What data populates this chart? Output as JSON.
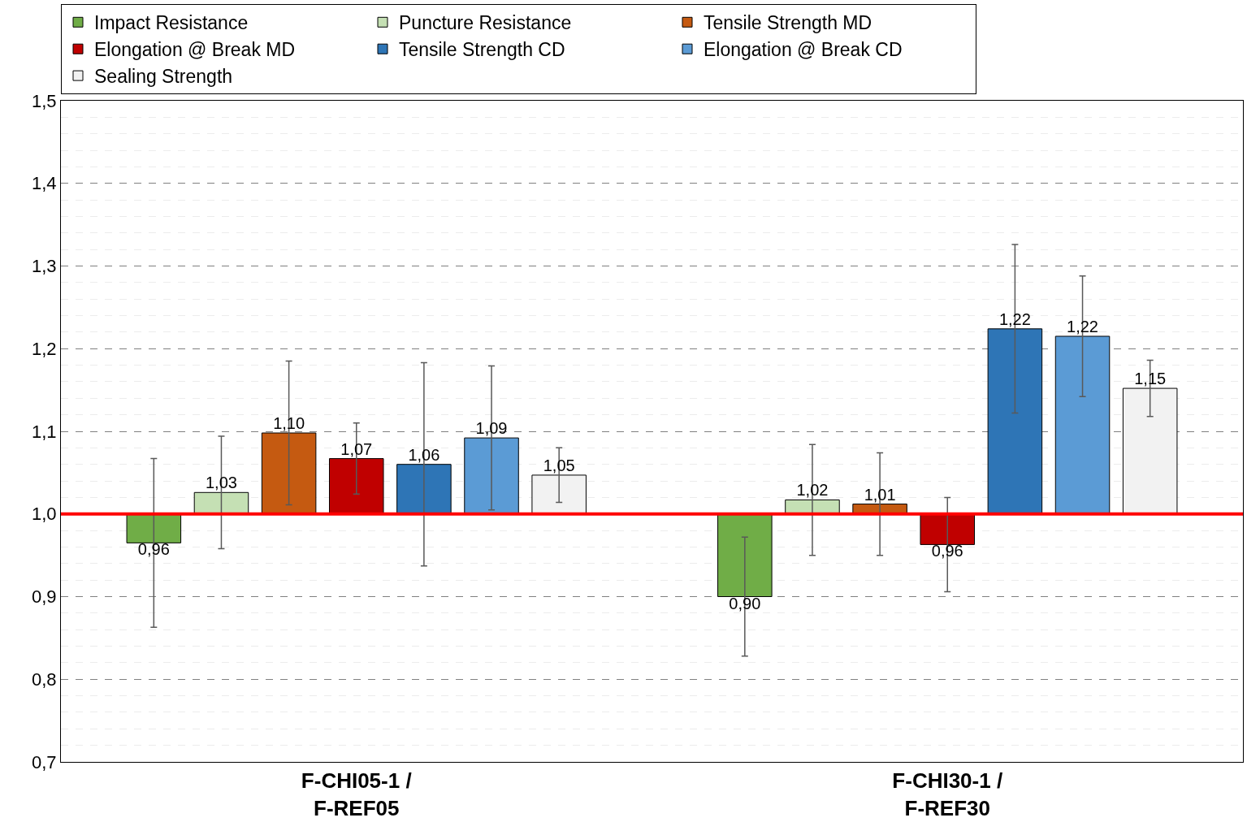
{
  "chart_data": {
    "type": "bar",
    "categories": [
      "F-CHI05-1 /\nF-REF05",
      "F-CHI30-1 /\nF-REF30"
    ],
    "series": [
      {
        "name": "Impact Resistance",
        "color": "#70ad47",
        "base": [
          1.0,
          1.0
        ],
        "values": [
          -0.035,
          -0.1
        ],
        "errors": [
          0.102,
          0.072
        ],
        "value_labels": [
          "0,96",
          "0,90"
        ]
      },
      {
        "name": "Puncture Resistance",
        "color": "#c5e0b4",
        "base": [
          1.0,
          1.0
        ],
        "values": [
          0.026,
          0.017
        ],
        "errors": [
          0.068,
          0.067
        ],
        "value_labels": [
          "1,03",
          "1,02"
        ]
      },
      {
        "name": "Tensile Strength MD",
        "color": "#c55a11",
        "base": [
          1.0,
          1.0
        ],
        "values": [
          0.098,
          0.012
        ],
        "errors": [
          0.087,
          0.062
        ],
        "value_labels": [
          "1,10",
          "1,01"
        ]
      },
      {
        "name": "Elongation @ Break MD",
        "color": "#c00000",
        "base": [
          1.0,
          1.0
        ],
        "values": [
          0.067,
          -0.037
        ],
        "errors": [
          0.043,
          0.057
        ],
        "value_labels": [
          "1,07",
          "0,96"
        ]
      },
      {
        "name": "Tensile Strength CD",
        "color": "#2e75b6",
        "base": [
          1.0,
          1.0
        ],
        "values": [
          0.06,
          0.224
        ],
        "errors": [
          0.123,
          0.102
        ],
        "value_labels": [
          "1,06",
          "1,22"
        ]
      },
      {
        "name": "Elongation @ Break CD",
        "color": "#5b9bd5",
        "base": [
          1.0,
          1.0
        ],
        "values": [
          0.092,
          0.215
        ],
        "errors": [
          0.087,
          0.073
        ],
        "value_labels": [
          "1,09",
          "1,22"
        ]
      },
      {
        "name": "Sealing Strength",
        "color": "#f2f2f2",
        "base": [
          1.0,
          1.0
        ],
        "values": [
          0.047,
          0.152
        ],
        "errors": [
          0.033,
          0.034
        ],
        "value_labels": [
          "1,05",
          "1,15"
        ]
      }
    ],
    "ylim": [
      0.7,
      1.5
    ],
    "yticks": [
      {
        "value": 0.7,
        "label": "0,7"
      },
      {
        "value": 0.8,
        "label": "0,8"
      },
      {
        "value": 0.9,
        "label": "0,9"
      },
      {
        "value": 1.0,
        "label": "1,0"
      },
      {
        "value": 1.1,
        "label": "1,1"
      },
      {
        "value": 1.2,
        "label": "1,2"
      },
      {
        "value": 1.3,
        "label": "1,3"
      },
      {
        "value": 1.4,
        "label": "1,4"
      },
      {
        "value": 1.5,
        "label": "1,5"
      }
    ],
    "ref_lines": [
      {
        "axis": "y",
        "value": 1.0,
        "color": "#ff0000"
      }
    ],
    "grid": "y",
    "legend": "top"
  }
}
